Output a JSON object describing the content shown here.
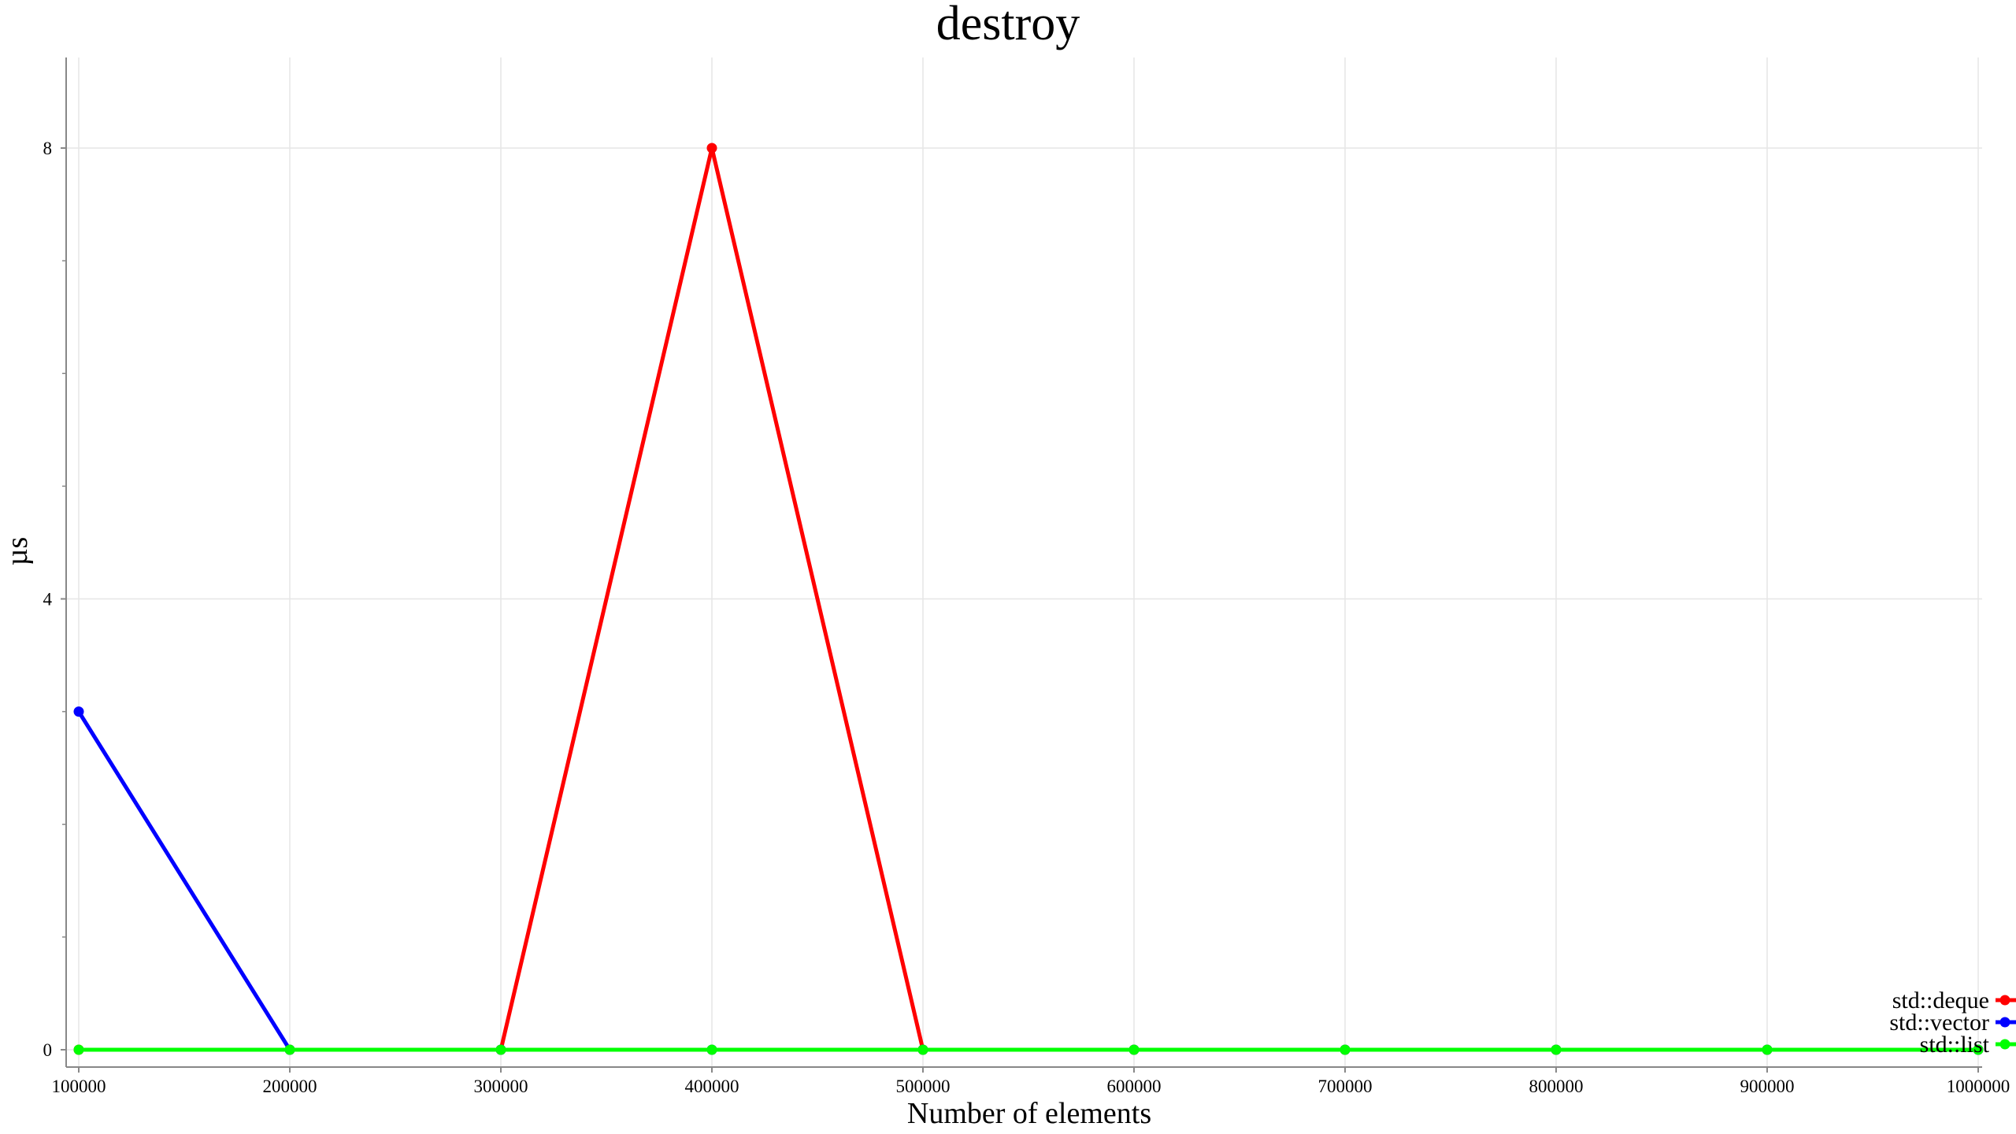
{
  "chart_data": {
    "type": "line",
    "title": "destroy",
    "xlabel": "Number of elements",
    "ylabel": "µs",
    "x": [
      100000,
      200000,
      300000,
      400000,
      500000,
      600000,
      700000,
      800000,
      900000,
      1000000
    ],
    "xticks": [
      "100000",
      "200000",
      "300000",
      "400000",
      "500000",
      "600000",
      "700000",
      "800000",
      "900000",
      "1000000"
    ],
    "yticks": [
      "0",
      "4",
      "8"
    ],
    "xlim": [
      100000,
      1000000
    ],
    "ylim": [
      0,
      8
    ],
    "grid": true,
    "legend_position": "bottom-right",
    "series": [
      {
        "name": "std::deque",
        "color": "#ff0000",
        "values": [
          0,
          0,
          0,
          8,
          0,
          0,
          0,
          0,
          0,
          0
        ]
      },
      {
        "name": "std::vector",
        "color": "#0000ff",
        "values": [
          3,
          0,
          0,
          0,
          0,
          0,
          0,
          0,
          0,
          0
        ]
      },
      {
        "name": "std::list",
        "color": "#00ff00",
        "values": [
          0,
          0,
          0,
          0,
          0,
          0,
          0,
          0,
          0,
          0
        ]
      }
    ]
  }
}
